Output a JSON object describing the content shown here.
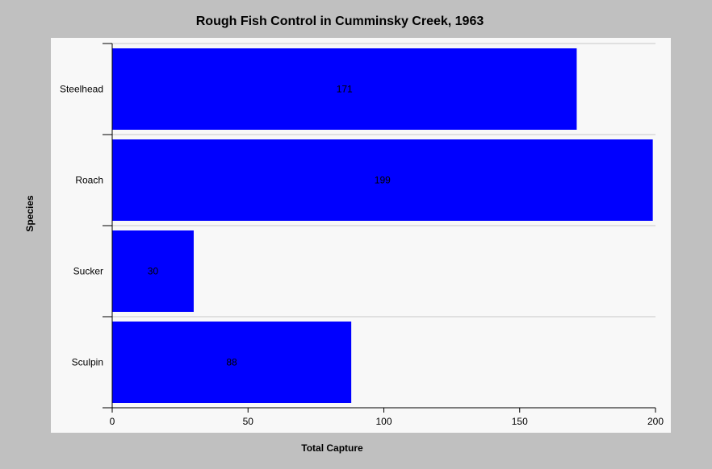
{
  "chart_data": {
    "type": "bar",
    "orientation": "horizontal",
    "title": "Rough Fish Control in Cumminsky Creek, 1963",
    "xlabel": "Total Capture",
    "ylabel": "Species",
    "categories": [
      "Steelhead",
      "Roach",
      "Sucker",
      "Sculpin"
    ],
    "values": [
      171,
      199,
      30,
      88
    ],
    "xlim": [
      0,
      200
    ],
    "xticks": [
      0,
      50,
      100,
      150,
      200
    ],
    "bar_color": "#0000ff",
    "background_color": "#c0c0c0",
    "plot_background_color": "#f8f8f8",
    "grid": "horizontal separators",
    "legend": "none"
  }
}
